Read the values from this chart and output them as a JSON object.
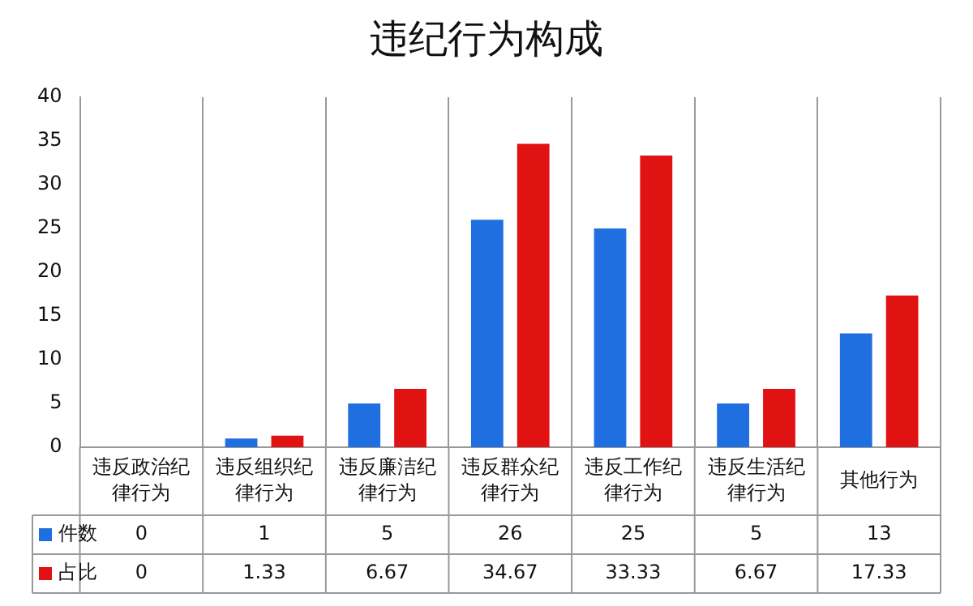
{
  "chart_data": {
    "type": "bar",
    "title": "违纪行为构成",
    "categories": [
      "违反政治纪律行为",
      "违反组织纪律行为",
      "违反廉洁纪律行为",
      "违反群众纪律行为",
      "违反工作纪律行为",
      "违反生活纪律行为",
      "其他行为"
    ],
    "series": [
      {
        "name": "件数",
        "color": "#1f6fe0",
        "values": [
          0,
          1,
          5,
          26,
          25,
          5,
          13
        ]
      },
      {
        "name": "占比",
        "color": "#e01212",
        "values": [
          0,
          1.33,
          6.67,
          34.67,
          33.33,
          6.67,
          17.33
        ]
      }
    ],
    "ylim": [
      0,
      40
    ],
    "yticks": [
      0,
      5,
      10,
      15,
      20,
      25,
      30,
      35,
      40
    ],
    "grid": "x",
    "legend": "bottom left",
    "data_labels": true
  }
}
